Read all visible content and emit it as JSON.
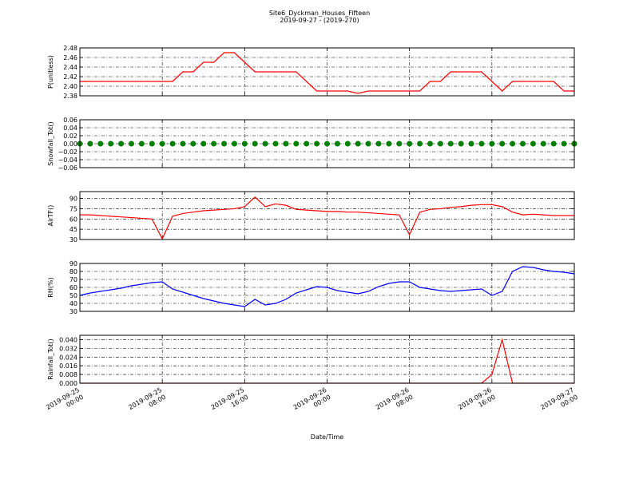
{
  "title": "Site6_Dyckman_Houses_Fifteen",
  "subtitle": "2019-09-27 - (2019-270)",
  "chart_data": [
    {
      "type": "line",
      "ylabel": "P(unitless)",
      "ylim": [
        2.38,
        2.48
      ],
      "yticks": [
        2.38,
        {
          "value": 2.4,
          "label": "2.40"
        },
        2.42,
        2.44,
        2.46,
        2.48
      ],
      "grid": true,
      "series": [
        {
          "color": "#ff0000",
          "values": [
            2.41,
            2.41,
            2.41,
            2.41,
            2.41,
            2.41,
            2.41,
            2.41,
            2.41,
            2.41,
            2.43,
            2.43,
            2.45,
            2.45,
            2.47,
            2.47,
            2.45,
            2.43,
            2.43,
            2.43,
            2.43,
            2.43,
            2.41,
            2.39,
            2.39,
            2.39,
            2.39,
            2.385,
            2.39,
            2.39,
            2.39,
            2.39,
            2.39,
            2.39,
            2.41,
            2.41,
            2.43,
            2.43,
            2.43,
            2.43,
            2.41,
            2.39,
            2.41,
            2.41,
            2.41,
            2.41,
            2.41,
            2.39,
            2.39
          ]
        }
      ]
    },
    {
      "type": "scatter",
      "ylabel": "Snowfall_Tot()",
      "ylim": [
        -0.06,
        0.06
      ],
      "yticks": [
        {
          "value": -0.06,
          "label": "−0.06"
        },
        {
          "value": -0.04,
          "label": "−0.04"
        },
        {
          "value": -0.02,
          "label": "−0.02"
        },
        {
          "value": 0,
          "label": "0.00"
        },
        0.02,
        0.04,
        0.06
      ],
      "grid": true,
      "series": [
        {
          "color": "#008000",
          "values": [
            0,
            0,
            0,
            0,
            0,
            0,
            0,
            0,
            0,
            0,
            0,
            0,
            0,
            0,
            0,
            0,
            0,
            0,
            0,
            0,
            0,
            0,
            0,
            0,
            0,
            0,
            0,
            0,
            0,
            0,
            0,
            0,
            0,
            0,
            0,
            0,
            0,
            0,
            0,
            0,
            0,
            0,
            0,
            0,
            0,
            0,
            0,
            0,
            0
          ]
        }
      ]
    },
    {
      "type": "line",
      "ylabel": "AirTF()",
      "ylim": [
        30,
        100
      ],
      "yticks": [
        30,
        45,
        60,
        75,
        90
      ],
      "grid": true,
      "series": [
        {
          "color": "#ff0000",
          "values": [
            66,
            66,
            65,
            64,
            63,
            62,
            61,
            60,
            31,
            64,
            68,
            70,
            72,
            73,
            74,
            75,
            78,
            92,
            78,
            82,
            80,
            74,
            73,
            72,
            71,
            71,
            70,
            70,
            69,
            68,
            67,
            66,
            37,
            70,
            74,
            75,
            77,
            78,
            80,
            81,
            81,
            78,
            70,
            66,
            67,
            66,
            65,
            65,
            65
          ]
        }
      ]
    },
    {
      "type": "line",
      "ylabel": "RH(%)",
      "ylim": [
        30,
        90
      ],
      "yticks": [
        30,
        40,
        50,
        60,
        70,
        80,
        90
      ],
      "grid": true,
      "series": [
        {
          "color": "#0000ff",
          "values": [
            50,
            53,
            55,
            57,
            59,
            62,
            64,
            66,
            67,
            58,
            54,
            50,
            46,
            43,
            40,
            38,
            36,
            45,
            38,
            40,
            45,
            53,
            57,
            61,
            60,
            56,
            54,
            52,
            55,
            61,
            65,
            67,
            67,
            60,
            58,
            56,
            55,
            56,
            57,
            58,
            50,
            55,
            80,
            86,
            85,
            82,
            80,
            79,
            77
          ]
        }
      ]
    },
    {
      "type": "line",
      "ylabel": "Rainfall_Tot()",
      "ylim": [
        0,
        0.044
      ],
      "yticks": [
        {
          "value": 0,
          "label": "0.000"
        },
        0.008,
        0.016,
        0.024,
        0.032,
        {
          "value": 0.04,
          "label": "0.040"
        }
      ],
      "grid": true,
      "xlabel": "Date/Time",
      "xlim": [
        "2019-09-25 00:00",
        "2019-09-27 00:00"
      ],
      "xticks": [
        "2019-09-25 00:00",
        "2019-09-25 08:00",
        "2019-09-25 16:00",
        "2019-09-26 00:00",
        "2019-09-26 08:00",
        "2019-09-26 16:00",
        "2019-09-27 00:00"
      ],
      "x": [
        "2019-09-25 00:00",
        "2019-09-25 01:00",
        "2019-09-25 02:00",
        "2019-09-25 03:00",
        "2019-09-25 04:00",
        "2019-09-25 05:00",
        "2019-09-25 06:00",
        "2019-09-25 07:00",
        "2019-09-25 08:00",
        "2019-09-25 09:00",
        "2019-09-25 10:00",
        "2019-09-25 11:00",
        "2019-09-25 12:00",
        "2019-09-25 13:00",
        "2019-09-25 14:00",
        "2019-09-25 15:00",
        "2019-09-25 16:00",
        "2019-09-25 17:00",
        "2019-09-25 18:00",
        "2019-09-25 19:00",
        "2019-09-25 20:00",
        "2019-09-25 21:00",
        "2019-09-25 22:00",
        "2019-09-25 23:00",
        "2019-09-26 00:00",
        "2019-09-26 01:00",
        "2019-09-26 02:00",
        "2019-09-26 03:00",
        "2019-09-26 04:00",
        "2019-09-26 05:00",
        "2019-09-26 06:00",
        "2019-09-26 07:00",
        "2019-09-26 08:00",
        "2019-09-26 09:00",
        "2019-09-26 10:00",
        "2019-09-26 11:00",
        "2019-09-26 12:00",
        "2019-09-26 13:00",
        "2019-09-26 14:00",
        "2019-09-26 15:00",
        "2019-09-26 16:00",
        "2019-09-26 17:00",
        "2019-09-26 18:00",
        "2019-09-26 19:00",
        "2019-09-26 20:00",
        "2019-09-26 21:00",
        "2019-09-26 22:00",
        "2019-09-26 23:00",
        "2019-09-27 00:00"
      ],
      "series": [
        {
          "color": "#ff0000",
          "values": [
            0,
            0,
            0,
            0,
            0,
            0,
            0,
            0,
            0,
            0,
            0,
            0,
            0,
            0,
            0,
            0,
            0,
            0,
            0,
            0,
            0,
            0,
            0,
            0,
            0,
            0,
            0,
            0,
            0,
            0,
            0,
            0,
            0,
            0,
            0,
            0,
            0,
            0,
            0,
            0,
            0.008,
            0.04,
            0,
            0,
            0,
            0,
            0,
            0,
            0
          ]
        }
      ]
    }
  ]
}
